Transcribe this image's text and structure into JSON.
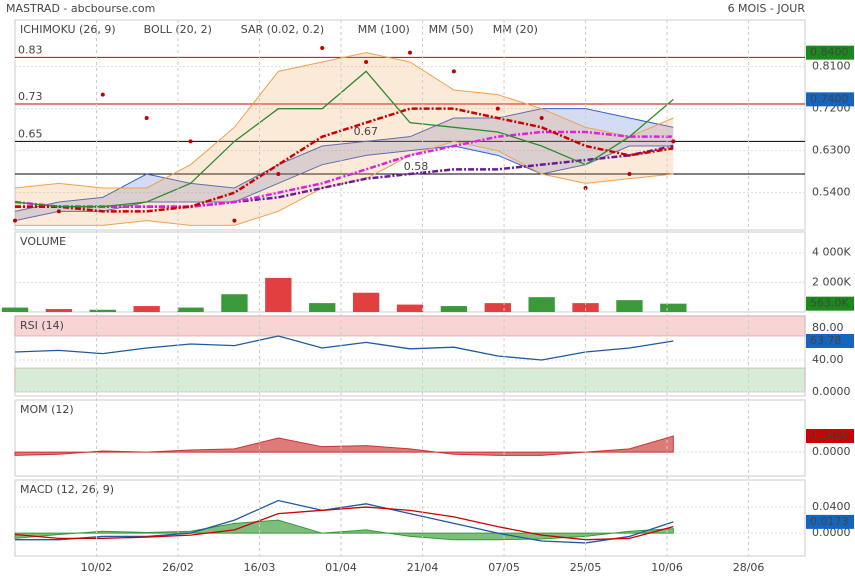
{
  "header": {
    "title": "MASTRAD - abcbourse.com",
    "period": "6 MOIS - JOUR"
  },
  "chart_data": [
    {
      "type": "line",
      "x": [
        0,
        7,
        14,
        21,
        28,
        35,
        42,
        49,
        56,
        63,
        70,
        77,
        84,
        91,
        98,
        105
      ],
      "xlim": [
        0,
        126
      ],
      "ylim": [
        0.46,
        0.91
      ],
      "yticks": [
        {
          "value": 0.54,
          "label": "0.5400"
        },
        {
          "value": 0.63,
          "label": "0.6300"
        },
        {
          "value": 0.72,
          "label": "0.7200"
        },
        {
          "value": 0.81,
          "label": "0.8100"
        }
      ],
      "series": [
        {
          "name": "ICHIMOKU (26, 9)",
          "color": "#3a5fc8",
          "style": "band",
          "values": [
            0.5,
            0.52,
            0.53,
            0.58,
            0.56,
            0.55,
            0.6,
            0.64,
            0.65,
            0.66,
            0.7,
            0.7,
            0.72,
            0.72,
            0.7,
            0.68
          ],
          "lower": [
            0.48,
            0.5,
            0.5,
            0.52,
            0.52,
            0.52,
            0.56,
            0.6,
            0.62,
            0.63,
            0.64,
            0.62,
            0.58,
            0.6,
            0.64,
            0.64
          ]
        },
        {
          "name": "BOLL (20, 2)",
          "color": "#f0a050",
          "style": "band",
          "values": [
            0.55,
            0.56,
            0.55,
            0.55,
            0.6,
            0.68,
            0.8,
            0.82,
            0.84,
            0.82,
            0.76,
            0.75,
            0.72,
            0.68,
            0.66,
            0.7
          ],
          "lower": [
            0.47,
            0.47,
            0.47,
            0.48,
            0.47,
            0.47,
            0.5,
            0.55,
            0.57,
            0.62,
            0.65,
            0.63,
            0.58,
            0.56,
            0.57,
            0.58
          ]
        },
        {
          "name": "SAR (0.02, 0.2)",
          "color": "#c00000",
          "style": "dots",
          "values": [
            0.48,
            0.5,
            0.75,
            0.7,
            0.65,
            0.48,
            0.58,
            0.85,
            0.82,
            0.84,
            0.8,
            0.72,
            0.7,
            0.55,
            0.58,
            0.65
          ]
        },
        {
          "name": "MM (100)",
          "color": "#6a1b9a",
          "style": "line",
          "values": [
            0.51,
            0.51,
            0.51,
            0.51,
            0.51,
            0.52,
            0.53,
            0.55,
            0.57,
            0.58,
            0.59,
            0.59,
            0.6,
            0.61,
            0.62,
            0.64
          ]
        },
        {
          "name": "MM (50)",
          "color": "#e020e0",
          "style": "line",
          "values": [
            0.52,
            0.51,
            0.51,
            0.51,
            0.51,
            0.52,
            0.54,
            0.56,
            0.59,
            0.62,
            0.64,
            0.66,
            0.67,
            0.67,
            0.66,
            0.66
          ]
        },
        {
          "name": "MM (20)",
          "color": "#cc0000",
          "style": "line",
          "values": [
            0.51,
            0.51,
            0.5,
            0.5,
            0.51,
            0.54,
            0.6,
            0.66,
            0.69,
            0.72,
            0.72,
            0.7,
            0.68,
            0.64,
            0.62,
            0.635
          ]
        },
        {
          "color": "#2e8b2e",
          "style": "line",
          "values": [
            0.52,
            0.51,
            0.51,
            0.52,
            0.56,
            0.65,
            0.72,
            0.72,
            0.8,
            0.69,
            0.68,
            0.67,
            0.64,
            0.6,
            0.66,
            0.74
          ]
        }
      ],
      "levels": [
        {
          "value": 0.83,
          "label": "0.83",
          "color": "#cc0000"
        },
        {
          "value": 0.73,
          "label": "0.73",
          "color": "#cc0000"
        },
        {
          "value": 0.65,
          "label": "0.65",
          "color": "#000000"
        },
        {
          "value": 0.58,
          "label": "0.58",
          "color": "#000000",
          "x": 62
        }
      ],
      "notes": [
        {
          "x": 54,
          "value": 0.67,
          "label": "0.67"
        }
      ],
      "markers": [
        {
          "value": 0.84,
          "label": "0.8400",
          "color": "#1a8a1a"
        },
        {
          "value": 0.74,
          "label": "0.7400",
          "color": "#1565c0"
        }
      ]
    },
    {
      "type": "bar",
      "title": "VOLUME",
      "x": [
        0,
        7,
        14,
        21,
        28,
        35,
        42,
        49,
        56,
        63,
        70,
        77,
        84,
        91,
        98,
        105
      ],
      "xlim": [
        0,
        126
      ],
      "values": [
        300000,
        200000,
        150000,
        400000,
        300000,
        1200000,
        2300000,
        600000,
        1300000,
        500000,
        400000,
        600000,
        1000000,
        600000,
        800000,
        563000
      ],
      "colors": [
        "#3a9a3a",
        "#e04040",
        "#3a9a3a",
        "#e04040",
        "#3a9a3a",
        "#3a9a3a",
        "#e04040",
        "#3a9a3a",
        "#e04040",
        "#e04040",
        "#3a9a3a",
        "#e04040",
        "#3a9a3a",
        "#e04040",
        "#3a9a3a",
        "#3a9a3a"
      ],
      "ylim": [
        0,
        5400000
      ],
      "yticks": [
        {
          "value": 2000000,
          "label": "2 000K"
        },
        {
          "value": 4000000,
          "label": "4 000K"
        }
      ],
      "markers": [
        {
          "value": 563000,
          "label": "563.0K",
          "color": "#1a8a1a"
        }
      ]
    },
    {
      "type": "line",
      "title": "RSI (14)",
      "x": [
        0,
        7,
        14,
        21,
        28,
        35,
        42,
        49,
        56,
        63,
        70,
        77,
        84,
        91,
        98,
        105
      ],
      "xlim": [
        0,
        126
      ],
      "ylim": [
        -5,
        95
      ],
      "yticks": [
        {
          "value": 0,
          "label": "0.0000"
        },
        {
          "value": 40,
          "label": "40.00"
        },
        {
          "value": 80,
          "label": "80.00"
        }
      ],
      "zones": [
        {
          "from": 70,
          "to": 100,
          "color": "#f8d4d4"
        },
        {
          "from": 0,
          "to": 30,
          "color": "#d6ecd6"
        }
      ],
      "series": [
        {
          "color": "#1e5aa0",
          "style": "line",
          "values": [
            50,
            52,
            48,
            55,
            60,
            58,
            70,
            55,
            62,
            54,
            56,
            45,
            40,
            50,
            55,
            63.78
          ]
        }
      ],
      "markers": [
        {
          "value": 63.78,
          "label": "63.78",
          "color": "#1565c0"
        }
      ]
    },
    {
      "type": "line",
      "title": "MOM (12)",
      "x": [
        0,
        7,
        14,
        21,
        28,
        35,
        42,
        49,
        56,
        63,
        70,
        77,
        84,
        91,
        98,
        105
      ],
      "xlim": [
        0,
        126
      ],
      "ylim": [
        -0.22,
        0.48
      ],
      "yticks": [
        {
          "value": 0,
          "label": "0.0000"
        }
      ],
      "series": [
        {
          "color": "#cc3333",
          "style": "area",
          "values": [
            -0.03,
            -0.02,
            0.01,
            0.0,
            0.02,
            0.03,
            0.13,
            0.05,
            0.06,
            0.03,
            -0.02,
            -0.03,
            -0.03,
            0.0,
            0.03,
            0.148
          ]
        }
      ],
      "markers": [
        {
          "value": 0.148,
          "label": "0.1480",
          "color": "#cc0000"
        }
      ]
    },
    {
      "type": "line",
      "title": "MACD (12, 26, 9)",
      "x": [
        0,
        7,
        14,
        21,
        28,
        35,
        42,
        49,
        56,
        63,
        70,
        77,
        84,
        91,
        98,
        105
      ],
      "xlim": [
        0,
        126
      ],
      "ylim": [
        -0.035,
        0.0815
      ],
      "yticks": [
        {
          "value": 0,
          "label": "0.0000"
        },
        {
          "value": 0.04,
          "label": "0.0400"
        }
      ],
      "xticks": [
        {
          "value": 13,
          "label": "10/02"
        },
        {
          "value": 26,
          "label": "26/02"
        },
        {
          "value": 39,
          "label": "16/03"
        },
        {
          "value": 52,
          "label": "01/04"
        },
        {
          "value": 65,
          "label": "21/04"
        },
        {
          "value": 78,
          "label": "07/05"
        },
        {
          "value": 91,
          "label": "25/05"
        },
        {
          "value": 104,
          "label": "10/06"
        },
        {
          "value": 117,
          "label": "28/06"
        }
      ],
      "series": [
        {
          "color": "#3a9a3a",
          "style": "area",
          "values": [
            -0.008,
            -0.002,
            0.003,
            0.001,
            0.003,
            0.015,
            0.02,
            0.0,
            0.005,
            -0.005,
            -0.01,
            -0.01,
            -0.009,
            -0.005,
            0.003,
            0.007
          ]
        },
        {
          "color": "#1e5aa0",
          "style": "line",
          "values": [
            -0.01,
            -0.01,
            -0.005,
            -0.005,
            0.0,
            0.02,
            0.05,
            0.035,
            0.045,
            0.03,
            0.015,
            0.0,
            -0.012,
            -0.015,
            -0.005,
            0.0173
          ]
        },
        {
          "color": "#cc0000",
          "style": "line",
          "values": [
            -0.002,
            -0.008,
            -0.008,
            -0.006,
            -0.003,
            0.005,
            0.03,
            0.035,
            0.04,
            0.035,
            0.025,
            0.01,
            -0.003,
            -0.01,
            -0.008,
            0.01
          ]
        }
      ],
      "markers": [
        {
          "value": 0.0173,
          "label": "0.0173",
          "color": "#1565c0"
        }
      ]
    }
  ]
}
